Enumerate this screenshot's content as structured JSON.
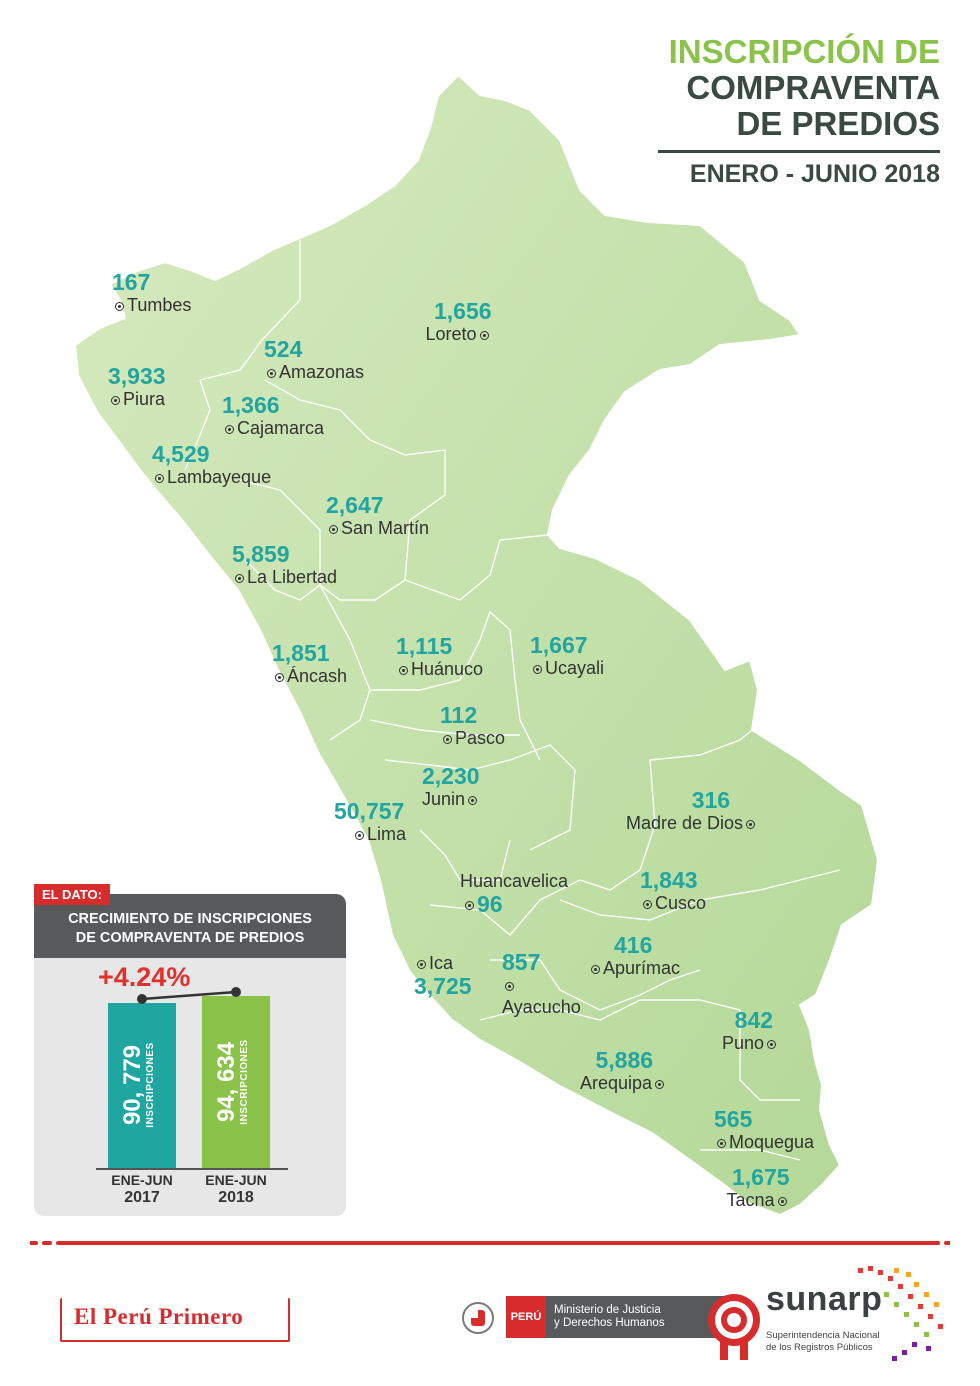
{
  "header": {
    "title_line1": "INSCRIPCIÓN DE",
    "title_line2": "COMPRAVENTA",
    "title_line3": "DE PREDIOS",
    "period": "ENERO - JUNIO 2018"
  },
  "regions": [
    {
      "name": "Tumbes",
      "value": "167"
    },
    {
      "name": "Loreto",
      "value": "1,656"
    },
    {
      "name": "Amazonas",
      "value": "524"
    },
    {
      "name": "Piura",
      "value": "3,933"
    },
    {
      "name": "Cajamarca",
      "value": "1,366"
    },
    {
      "name": "Lambayeque",
      "value": "4,529"
    },
    {
      "name": "San Martín",
      "value": "2,647"
    },
    {
      "name": "La Libertad",
      "value": "5,859"
    },
    {
      "name": "Áncash",
      "value": "1,851"
    },
    {
      "name": "Huánuco",
      "value": "1,115"
    },
    {
      "name": "Ucayali",
      "value": "1,667"
    },
    {
      "name": "Pasco",
      "value": "112"
    },
    {
      "name": "Junin",
      "value": "2,230"
    },
    {
      "name": "Lima",
      "value": "50,757"
    },
    {
      "name": "Madre de Dios",
      "value": "316"
    },
    {
      "name": "Huancavelica",
      "value": "96"
    },
    {
      "name": "Cusco",
      "value": "1,843"
    },
    {
      "name": "Ica",
      "value": "3,725"
    },
    {
      "name": "Ayacucho",
      "value": "857"
    },
    {
      "name": "Apurímac",
      "value": "416"
    },
    {
      "name": "Puno",
      "value": "842"
    },
    {
      "name": "Arequipa",
      "value": "5,886"
    },
    {
      "name": "Moquegua",
      "value": "565"
    },
    {
      "name": "Tacna",
      "value": "1,675"
    }
  ],
  "card": {
    "tag": "EL DATO:",
    "title_line1": "CRECIMIENTO DE INSCRIPCIONES",
    "title_line2": "DE COMPRAVENTA DE PREDIOS",
    "growth": "+4.24%",
    "bars": [
      {
        "value_text": "90, 779",
        "unit": "INSCRIPCIONES",
        "period": "ENE-JUN",
        "year": "2017",
        "value": 90779,
        "color": "#1fa6a1"
      },
      {
        "value_text": "94, 634",
        "unit": "INSCRIPCIONES",
        "period": "ENE-JUN",
        "year": "2018",
        "value": 94634,
        "color": "#8bc34a"
      }
    ]
  },
  "footer": {
    "logo_text": "El Perú Primero",
    "peru_label": "PERÚ",
    "ministry_line1": "Ministerio de Justicia",
    "ministry_line2": "y Derechos Humanos",
    "sunarp_word": "sunarp",
    "sunarp_sub1": "Superintendencia Nacional",
    "sunarp_sub2": "de los Registros Públicos"
  },
  "colors": {
    "map_fill": "#c9e2ad",
    "map_border": "#ffffff",
    "value_teal": "#23a59f",
    "accent_red": "#d72c2c",
    "title_green": "#8bc34a",
    "title_dark": "#3a4a42"
  }
}
